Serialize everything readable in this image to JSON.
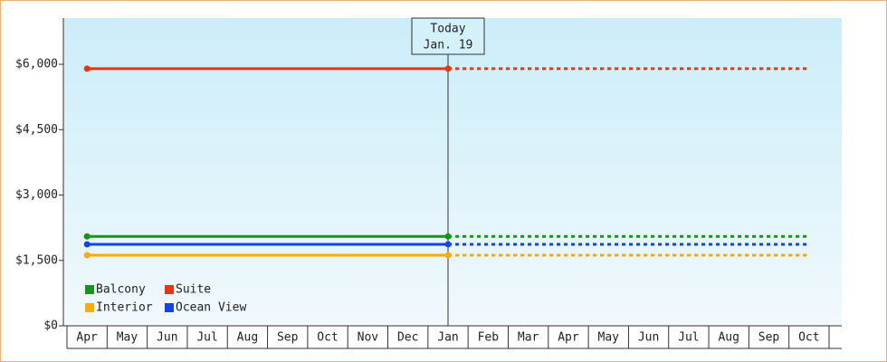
{
  "chart_data": {
    "type": "line",
    "categories": [
      "Apr",
      "May",
      "Jun",
      "Jul",
      "Aug",
      "Sep",
      "Oct",
      "Nov",
      "Dec",
      "Jan",
      "Feb",
      "Mar",
      "Apr",
      "May",
      "Jun",
      "Jul",
      "Aug",
      "Sep",
      "Oct"
    ],
    "series": [
      {
        "name": "Balcony",
        "color": "#119911",
        "values": [
          2050,
          2050,
          2050,
          2050,
          2050,
          2050,
          2050,
          2050,
          2050,
          2050,
          2050,
          2050,
          2050,
          2050,
          2050,
          2050,
          2050,
          2050,
          2050
        ]
      },
      {
        "name": "Suite",
        "color": "#ee3311",
        "values": [
          5900,
          5900,
          5900,
          5900,
          5900,
          5900,
          5900,
          5900,
          5900,
          5900,
          5900,
          5900,
          5900,
          5900,
          5900,
          5900,
          5900,
          5900,
          5900
        ]
      },
      {
        "name": "Interior",
        "color": "#ffaa00",
        "values": [
          1620,
          1620,
          1620,
          1620,
          1620,
          1620,
          1620,
          1620,
          1620,
          1620,
          1620,
          1620,
          1620,
          1620,
          1620,
          1620,
          1620,
          1620,
          1620
        ]
      },
      {
        "name": "Ocean View",
        "color": "#1144ee",
        "values": [
          1870,
          1870,
          1870,
          1870,
          1870,
          1870,
          1870,
          1870,
          1870,
          1870,
          1870,
          1870,
          1870,
          1870,
          1870,
          1870,
          1870,
          1870,
          1870
        ]
      }
    ],
    "ylim": [
      0,
      7060
    ],
    "yticks": [
      {
        "value": 0,
        "label": "$0"
      },
      {
        "value": 1500,
        "label": "$1,500"
      },
      {
        "value": 3000,
        "label": "$3,000"
      },
      {
        "value": 4500,
        "label": "$4,500"
      },
      {
        "value": 6000,
        "label": "$6,000"
      }
    ],
    "annotation": {
      "lines": [
        "Today",
        "Jan. 19"
      ],
      "category": "Jan"
    },
    "legend": "lower-left"
  }
}
